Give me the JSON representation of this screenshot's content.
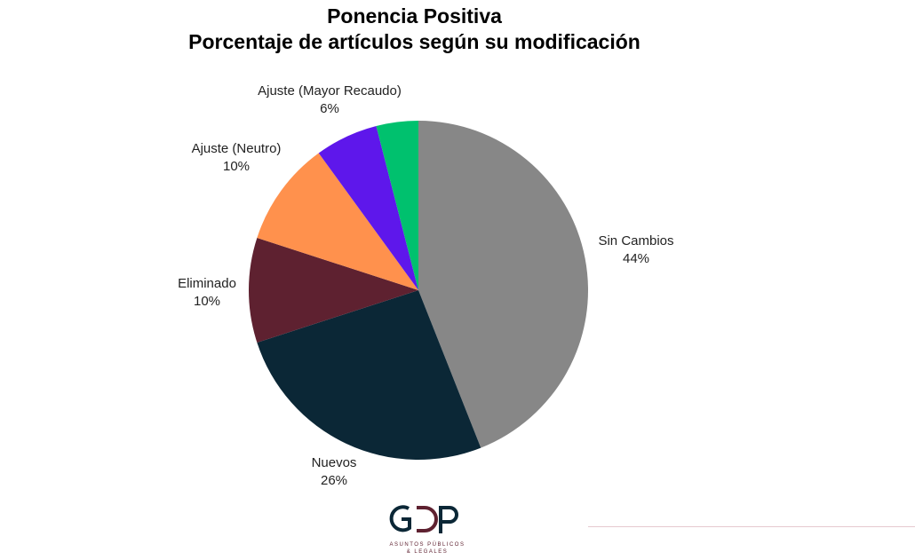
{
  "chart_data": {
    "type": "pie",
    "title": "Ponencia Positiva",
    "subtitle": "Porcentaje de artículos según su modificación",
    "slices": [
      {
        "label": "Sin Cambios",
        "value": 44,
        "display": "44%",
        "color": "#878787"
      },
      {
        "label": "Nuevos",
        "value": 26,
        "display": "26%",
        "color": "#0b2736"
      },
      {
        "label": "Eliminado",
        "value": 10,
        "display": "10%",
        "color": "#5e2130"
      },
      {
        "label": "Ajuste (Neutro)",
        "value": 10,
        "display": "10%",
        "color": "#ff914d"
      },
      {
        "label": "Ajuste (Mayor Recaudo)",
        "value": 6,
        "display": "6%",
        "color": "#5e17eb"
      },
      {
        "label": "",
        "value": 4,
        "display": "",
        "color": "#00c16e"
      }
    ],
    "legend": "none",
    "start_angle": "top, clockwise"
  },
  "logo": {
    "text": "GDP",
    "tagline": "ASUNTOS PÚBLICOS & LEGALES"
  }
}
